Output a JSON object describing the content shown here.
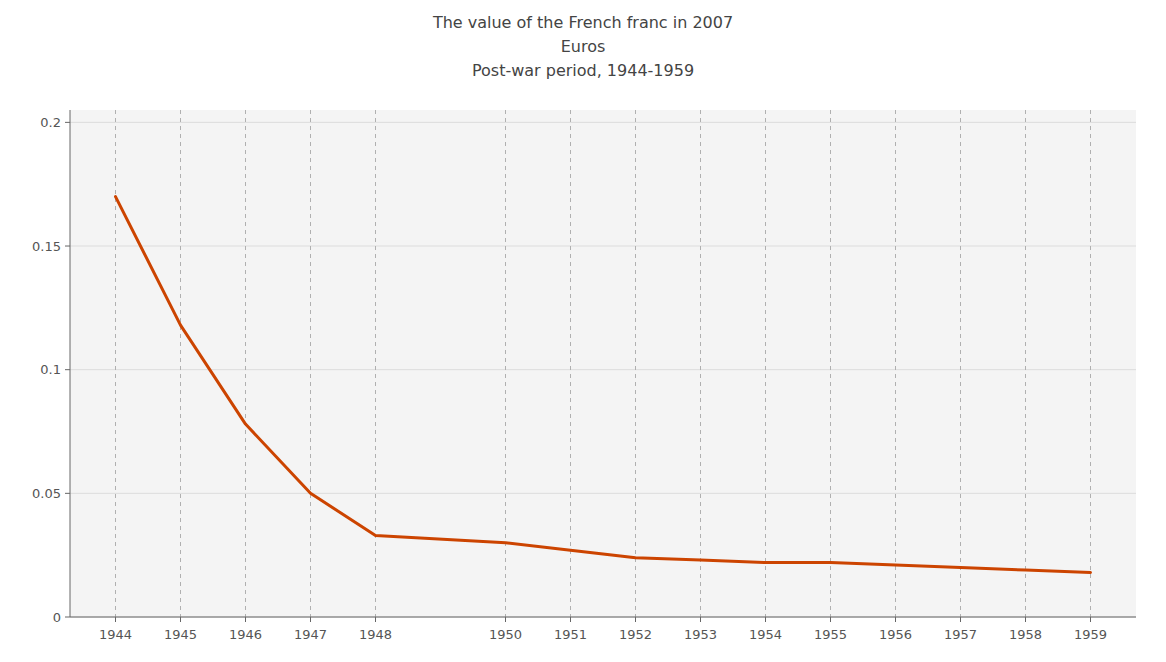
{
  "chart_data": {
    "type": "line",
    "title": "The value of the French franc in 2007\nEuros\nPost-war period, 1944-1959",
    "x": [
      1944,
      1945,
      1946,
      1947,
      1948,
      1950,
      1951,
      1952,
      1953,
      1954,
      1955,
      1956,
      1957,
      1958,
      1959
    ],
    "values": [
      0.17,
      0.118,
      0.078,
      0.05,
      0.033,
      0.03,
      0.027,
      0.024,
      0.023,
      0.022,
      0.022,
      0.021,
      0.02,
      0.019,
      0.018
    ],
    "color": "#cc4400",
    "xlim": [
      1943.3,
      1959.7
    ],
    "ylim": [
      0,
      0.205
    ],
    "xticks": [
      1944,
      1945,
      1946,
      1947,
      1948,
      1950,
      1951,
      1952,
      1953,
      1954,
      1955,
      1956,
      1957,
      1958,
      1959
    ],
    "yticks": [
      0,
      0.05,
      0.1,
      0.15,
      0.2
    ],
    "grid": true
  }
}
